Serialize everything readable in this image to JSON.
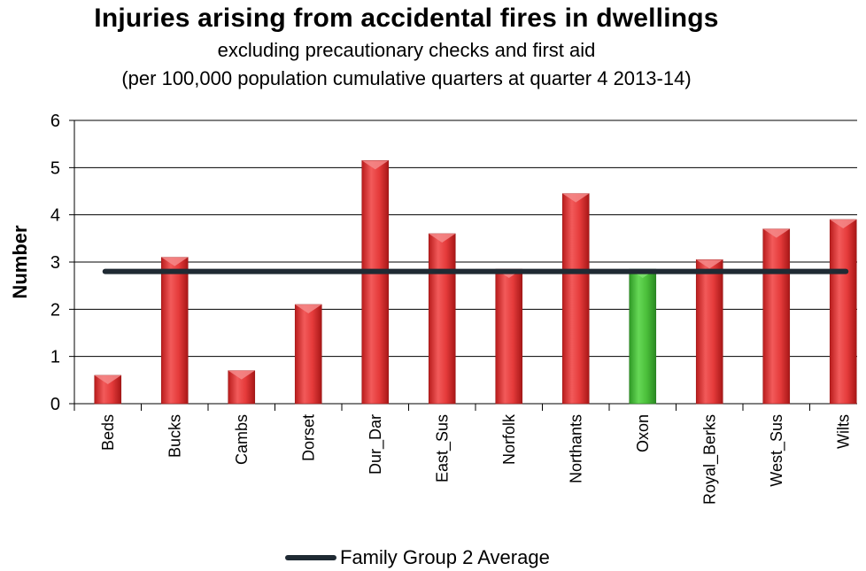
{
  "colors": {
    "bar": "#e53b3b",
    "bar_highlight": "#4bbf3a",
    "average_line": "#1f2a33"
  },
  "chart_data": {
    "type": "bar",
    "title": "Injuries arising from accidental fires in dwellings",
    "subtitle": "excluding precautionary checks and first aid",
    "subtitle2": "(per 100,000 population cumulative quarters at quarter 4 2013-14)",
    "ylabel": "Number",
    "xlabel": "",
    "ylim": [
      0,
      6
    ],
    "yticks": [
      0,
      1,
      2,
      3,
      4,
      5,
      6
    ],
    "grid": true,
    "legend_position": "bottom",
    "categories": [
      "Beds",
      "Bucks",
      "Cambs",
      "Dorset",
      "Dur_Dar",
      "East_Sus",
      "Norfolk",
      "Northants",
      "Oxon",
      "Royal_Berks",
      "West_Sus",
      "Wilts"
    ],
    "values": [
      0.6,
      3.1,
      0.7,
      2.1,
      5.15,
      3.6,
      2.85,
      4.45,
      2.85,
      3.05,
      3.7,
      3.9
    ],
    "highlight_category": "Oxon",
    "average": {
      "name": "Family Group 2 Average",
      "value": 2.8
    }
  }
}
